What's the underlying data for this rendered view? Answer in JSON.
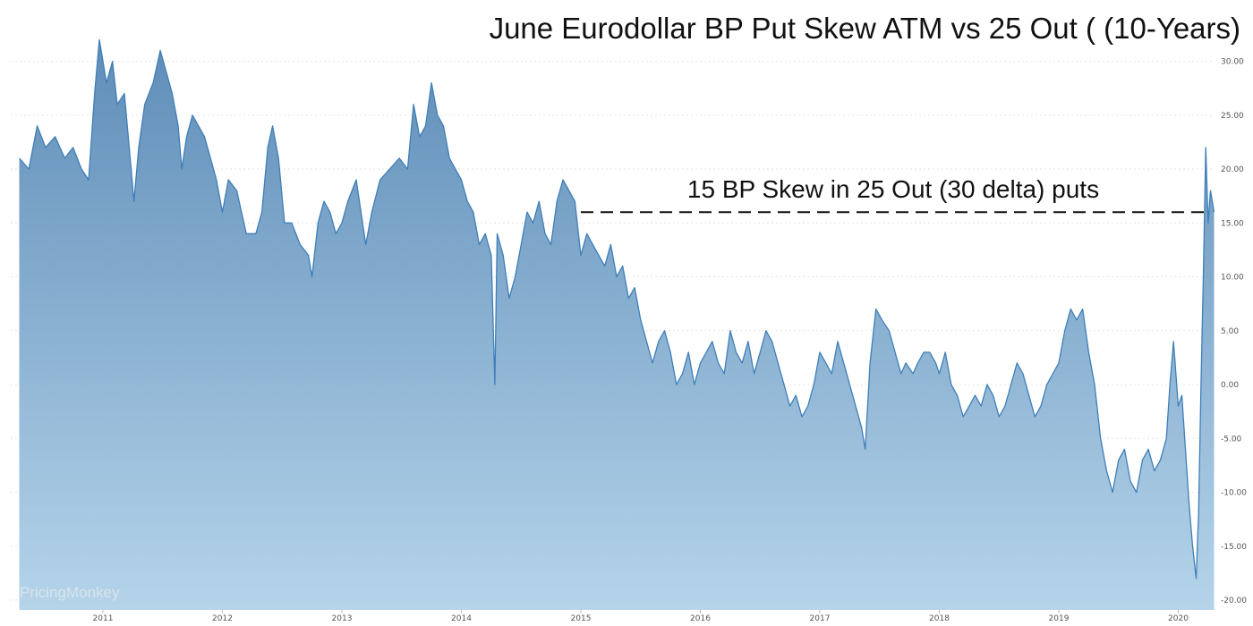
{
  "chart_data": {
    "type": "area",
    "title": "June Eurodollar BP Put Skew ATM vs 25 Out ( (10-Years)",
    "xlabel": "",
    "ylabel": "",
    "x_range": [
      2010.3,
      2020.3
    ],
    "ylim": [
      -20,
      33
    ],
    "y_ticks": [
      "30.00",
      "25.00",
      "20.00",
      "15.00",
      "10.00",
      "5.00",
      "0.00",
      "-5.00",
      "-10.00",
      "-15.00",
      "-20.00"
    ],
    "y_tick_values": [
      30,
      25,
      20,
      15,
      10,
      5,
      0,
      -5,
      -10,
      -15,
      -20
    ],
    "x_ticks": [
      "2011",
      "2012",
      "2013",
      "2014",
      "2015",
      "2016",
      "2017",
      "2018",
      "2019",
      "2020"
    ],
    "x_tick_values": [
      2011,
      2012,
      2013,
      2014,
      2015,
      2016,
      2017,
      2018,
      2019,
      2020
    ],
    "grid": true,
    "legend": "none",
    "series_points": [
      [
        2010.3,
        21
      ],
      [
        2010.38,
        20
      ],
      [
        2010.45,
        24
      ],
      [
        2010.52,
        22
      ],
      [
        2010.6,
        23
      ],
      [
        2010.68,
        21
      ],
      [
        2010.75,
        22
      ],
      [
        2010.82,
        20
      ],
      [
        2010.88,
        19
      ],
      [
        2010.93,
        27
      ],
      [
        2010.97,
        32
      ],
      [
        2011.03,
        28
      ],
      [
        2011.08,
        30
      ],
      [
        2011.12,
        26
      ],
      [
        2011.18,
        27
      ],
      [
        2011.22,
        22
      ],
      [
        2011.26,
        17
      ],
      [
        2011.3,
        22
      ],
      [
        2011.35,
        26
      ],
      [
        2011.42,
        28
      ],
      [
        2011.48,
        31
      ],
      [
        2011.53,
        29
      ],
      [
        2011.58,
        27
      ],
      [
        2011.63,
        24
      ],
      [
        2011.66,
        20
      ],
      [
        2011.7,
        23
      ],
      [
        2011.75,
        25
      ],
      [
        2011.8,
        24
      ],
      [
        2011.85,
        23
      ],
      [
        2011.9,
        21
      ],
      [
        2011.95,
        19
      ],
      [
        2012.0,
        16
      ],
      [
        2012.05,
        19
      ],
      [
        2012.12,
        18
      ],
      [
        2012.2,
        14
      ],
      [
        2012.28,
        14
      ],
      [
        2012.33,
        16
      ],
      [
        2012.38,
        22
      ],
      [
        2012.42,
        24
      ],
      [
        2012.47,
        21
      ],
      [
        2012.52,
        15
      ],
      [
        2012.58,
        15
      ],
      [
        2012.65,
        13
      ],
      [
        2012.72,
        12
      ],
      [
        2012.75,
        10
      ],
      [
        2012.8,
        15
      ],
      [
        2012.85,
        17
      ],
      [
        2012.9,
        16
      ],
      [
        2012.95,
        14
      ],
      [
        2013.0,
        15
      ],
      [
        2013.05,
        17
      ],
      [
        2013.12,
        19
      ],
      [
        2013.2,
        13
      ],
      [
        2013.25,
        16
      ],
      [
        2013.32,
        19
      ],
      [
        2013.4,
        20
      ],
      [
        2013.48,
        21
      ],
      [
        2013.55,
        20
      ],
      [
        2013.6,
        26
      ],
      [
        2013.65,
        23
      ],
      [
        2013.7,
        24
      ],
      [
        2013.75,
        28
      ],
      [
        2013.8,
        25
      ],
      [
        2013.85,
        24
      ],
      [
        2013.9,
        21
      ],
      [
        2013.95,
        20
      ],
      [
        2014.0,
        19
      ],
      [
        2014.05,
        17
      ],
      [
        2014.1,
        16
      ],
      [
        2014.15,
        13
      ],
      [
        2014.2,
        14
      ],
      [
        2014.25,
        12
      ],
      [
        2014.28,
        0
      ],
      [
        2014.3,
        14
      ],
      [
        2014.35,
        12
      ],
      [
        2014.4,
        8
      ],
      [
        2014.45,
        10
      ],
      [
        2014.5,
        13
      ],
      [
        2014.55,
        16
      ],
      [
        2014.6,
        15
      ],
      [
        2014.65,
        17
      ],
      [
        2014.7,
        14
      ],
      [
        2014.75,
        13
      ],
      [
        2014.8,
        17
      ],
      [
        2014.85,
        19
      ],
      [
        2014.9,
        18
      ],
      [
        2014.95,
        17
      ],
      [
        2015.0,
        12
      ],
      [
        2015.05,
        14
      ],
      [
        2015.1,
        13
      ],
      [
        2015.15,
        12
      ],
      [
        2015.2,
        11
      ],
      [
        2015.25,
        13
      ],
      [
        2015.3,
        10
      ],
      [
        2015.35,
        11
      ],
      [
        2015.4,
        8
      ],
      [
        2015.45,
        9
      ],
      [
        2015.5,
        6
      ],
      [
        2015.55,
        4
      ],
      [
        2015.6,
        2
      ],
      [
        2015.65,
        4
      ],
      [
        2015.7,
        5
      ],
      [
        2015.75,
        3
      ],
      [
        2015.8,
        0
      ],
      [
        2015.85,
        1
      ],
      [
        2015.9,
        3
      ],
      [
        2015.95,
        0
      ],
      [
        2016.0,
        2
      ],
      [
        2016.05,
        3
      ],
      [
        2016.1,
        4
      ],
      [
        2016.15,
        2
      ],
      [
        2016.2,
        1
      ],
      [
        2016.25,
        5
      ],
      [
        2016.3,
        3
      ],
      [
        2016.35,
        2
      ],
      [
        2016.4,
        4
      ],
      [
        2016.45,
        1
      ],
      [
        2016.5,
        3
      ],
      [
        2016.55,
        5
      ],
      [
        2016.6,
        4
      ],
      [
        2016.65,
        2
      ],
      [
        2016.7,
        0
      ],
      [
        2016.75,
        -2
      ],
      [
        2016.8,
        -1
      ],
      [
        2016.85,
        -3
      ],
      [
        2016.9,
        -2
      ],
      [
        2016.95,
        0
      ],
      [
        2017.0,
        3
      ],
      [
        2017.05,
        2
      ],
      [
        2017.1,
        1
      ],
      [
        2017.15,
        4
      ],
      [
        2017.2,
        2
      ],
      [
        2017.25,
        0
      ],
      [
        2017.3,
        -2
      ],
      [
        2017.35,
        -4
      ],
      [
        2017.38,
        -6
      ],
      [
        2017.42,
        2
      ],
      [
        2017.47,
        7
      ],
      [
        2017.52,
        6
      ],
      [
        2017.58,
        5
      ],
      [
        2017.63,
        3
      ],
      [
        2017.68,
        1
      ],
      [
        2017.72,
        2
      ],
      [
        2017.78,
        1
      ],
      [
        2017.82,
        2
      ],
      [
        2017.87,
        3
      ],
      [
        2017.92,
        3
      ],
      [
        2017.97,
        2
      ],
      [
        2018.0,
        1
      ],
      [
        2018.05,
        3
      ],
      [
        2018.1,
        0
      ],
      [
        2018.15,
        -1
      ],
      [
        2018.2,
        -3
      ],
      [
        2018.25,
        -2
      ],
      [
        2018.3,
        -1
      ],
      [
        2018.35,
        -2
      ],
      [
        2018.4,
        0
      ],
      [
        2018.45,
        -1
      ],
      [
        2018.5,
        -3
      ],
      [
        2018.55,
        -2
      ],
      [
        2018.6,
        0
      ],
      [
        2018.65,
        2
      ],
      [
        2018.7,
        1
      ],
      [
        2018.75,
        -1
      ],
      [
        2018.8,
        -3
      ],
      [
        2018.85,
        -2
      ],
      [
        2018.9,
        0
      ],
      [
        2018.95,
        1
      ],
      [
        2019.0,
        2
      ],
      [
        2019.05,
        5
      ],
      [
        2019.1,
        7
      ],
      [
        2019.15,
        6
      ],
      [
        2019.2,
        7
      ],
      [
        2019.25,
        3
      ],
      [
        2019.3,
        0
      ],
      [
        2019.35,
        -5
      ],
      [
        2019.4,
        -8
      ],
      [
        2019.45,
        -10
      ],
      [
        2019.5,
        -7
      ],
      [
        2019.55,
        -6
      ],
      [
        2019.6,
        -9
      ],
      [
        2019.65,
        -10
      ],
      [
        2019.7,
        -7
      ],
      [
        2019.75,
        -6
      ],
      [
        2019.8,
        -8
      ],
      [
        2019.85,
        -7
      ],
      [
        2019.9,
        -5
      ],
      [
        2019.93,
        0
      ],
      [
        2019.96,
        4
      ],
      [
        2020.0,
        -2
      ],
      [
        2020.03,
        -1
      ],
      [
        2020.06,
        -6
      ],
      [
        2020.09,
        -11
      ],
      [
        2020.12,
        -15
      ],
      [
        2020.15,
        -18
      ],
      [
        2020.17,
        -12
      ],
      [
        2020.19,
        0
      ],
      [
        2020.21,
        10
      ],
      [
        2020.23,
        22
      ],
      [
        2020.25,
        15
      ],
      [
        2020.27,
        18
      ],
      [
        2020.3,
        16
      ]
    ],
    "annotation_label": "15 BP Skew in 25 Out (30 delta) puts",
    "annotation_y": 16,
    "annotation_x_range": [
      2015.0,
      2020.25
    ],
    "watermark": "PricingMonkey",
    "colors": {
      "line": "#3f7fb8",
      "fill_top": "#5f8db8",
      "fill_bottom": "#b5d4ea",
      "annotation": "#111111"
    }
  }
}
